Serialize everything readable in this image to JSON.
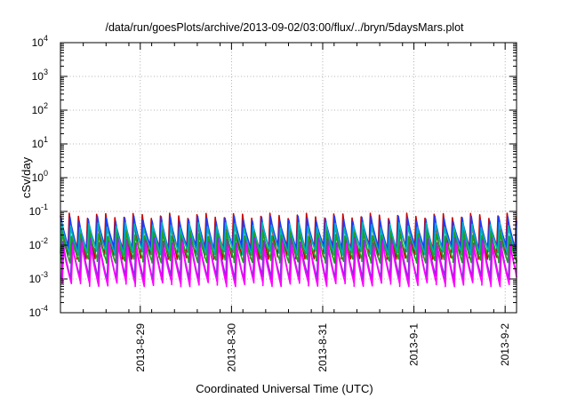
{
  "chart_data": {
    "type": "line",
    "title": "/data/run/goesPlots/archive/2013-09-02/03:00/flux/../bryn/5daysMars.plot",
    "xlabel": "Coordinated Universal Time (UTC)",
    "ylabel": "cSv/day",
    "yscale": "log",
    "ylim": [
      0.0001,
      10000
    ],
    "xlim": [
      "2013-08-28T03:00",
      "2013-09-02T03:00"
    ],
    "grid": true,
    "legend": "none",
    "y_ticks": [
      {
        "exp": "-4",
        "value": 0.0001
      },
      {
        "exp": "-3",
        "value": 0.001
      },
      {
        "exp": "-2",
        "value": 0.01
      },
      {
        "exp": "-1",
        "value": 0.1
      },
      {
        "exp": "0",
        "value": 1
      },
      {
        "exp": "1",
        "value": 10
      },
      {
        "exp": "2",
        "value": 100
      },
      {
        "exp": "3",
        "value": 1000
      },
      {
        "exp": "4",
        "value": 10000
      }
    ],
    "x_ticks": [
      {
        "label": "2013-8-29",
        "date": "2013-08-29T00:00"
      },
      {
        "label": "2013-8-30",
        "date": "2013-08-30T00:00"
      },
      {
        "label": "2013-8-31",
        "date": "2013-08-31T00:00"
      },
      {
        "label": "2013-9-1",
        "date": "2013-09-01T00:00"
      },
      {
        "label": "2013-9-2",
        "date": "2013-09-02T00:00"
      }
    ],
    "pattern": {
      "description_period_hours": 2.4,
      "cycles": 50
    },
    "series": [
      {
        "color": "#cc0000",
        "peak": 0.075,
        "trough": 0.0045
      },
      {
        "color": "#1e3cff",
        "peak": 0.062,
        "trough": 0.008
      },
      {
        "color": "#00b4b4",
        "peak": 0.04,
        "trough": 0.006
      },
      {
        "color": "#1fa01f",
        "peak": 0.022,
        "trough": 0.0035
      },
      {
        "color": "#8a2be2",
        "peak": 0.014,
        "trough": 0.0011
      },
      {
        "color": "#ff00ff",
        "peak": 0.01,
        "trough": 0.0007
      }
    ]
  }
}
